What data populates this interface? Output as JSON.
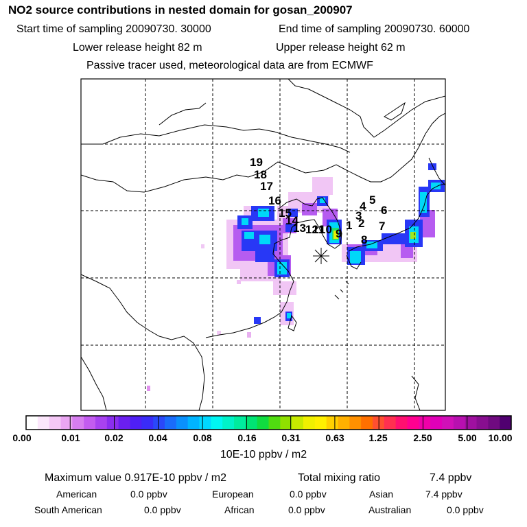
{
  "header": {
    "title": "NO2 source contributions in nested domain for gosan_200907",
    "start_label": "Start time of sampling 20090730. 30000",
    "end_label": "End time of sampling 20090730. 60000",
    "lower_label": "Lower release height   82 m",
    "upper_label": "Upper release height   62 m",
    "note": "Passive tracer used, meteorological data are from ECMWF"
  },
  "map": {
    "source_markers": [
      "1",
      "2",
      "3",
      "4",
      "5",
      "6",
      "7",
      "8",
      "9",
      "10",
      "11",
      "12",
      "13",
      "14",
      "15",
      "16",
      "17",
      "18",
      "19"
    ],
    "receptor_symbol": "*"
  },
  "colorbar": {
    "tick_labels": [
      "0.00",
      "0.01",
      "0.02",
      "0.04",
      "0.08",
      "0.16",
      "0.31",
      "0.63",
      "1.25",
      "2.50",
      "5.00",
      "10.00"
    ],
    "colors": [
      "#ffffff",
      "#fbe6fb",
      "#f4c8f6",
      "#eaa6f2",
      "#d77ef0",
      "#c35cf0",
      "#a842f0",
      "#8b2ef0",
      "#6b1ff0",
      "#4f1ff5",
      "#3a2cf8",
      "#2a48fa",
      "#1a6cfb",
      "#0a90fc",
      "#00b4ff",
      "#00d8ff",
      "#00f6f2",
      "#00f2c8",
      "#00ec9e",
      "#00e474",
      "#10dc40",
      "#50dc10",
      "#90e000",
      "#c8ea00",
      "#f0f000",
      "#fff000",
      "#ffd000",
      "#ffb000",
      "#ff9000",
      "#ff7000",
      "#ff5030",
      "#ff3050",
      "#ff1070",
      "#ff0090",
      "#f000a8",
      "#e000b8",
      "#d010b8",
      "#b810b0",
      "#a010a0",
      "#880e90",
      "#700a80",
      "#500070"
    ],
    "units": "10E-10 ppbv / m2"
  },
  "stats": {
    "max_label": "Maximum value  0.917E-10 ppbv / m2",
    "total_label": "Total mixing ratio",
    "total_value": "7.4 ppbv",
    "american_label": "American",
    "american_value": "0.0 ppbv",
    "european_label": "European",
    "european_value": "0.0 ppbv",
    "asian_label": "Asian",
    "asian_value": "7.4 ppbv",
    "south_american_label": "South American",
    "south_american_value": "0.0 ppbv",
    "african_label": "African",
    "african_value": "0.0 ppbv",
    "australian_label": "Australian",
    "australian_value": "0.0 ppbv"
  }
}
